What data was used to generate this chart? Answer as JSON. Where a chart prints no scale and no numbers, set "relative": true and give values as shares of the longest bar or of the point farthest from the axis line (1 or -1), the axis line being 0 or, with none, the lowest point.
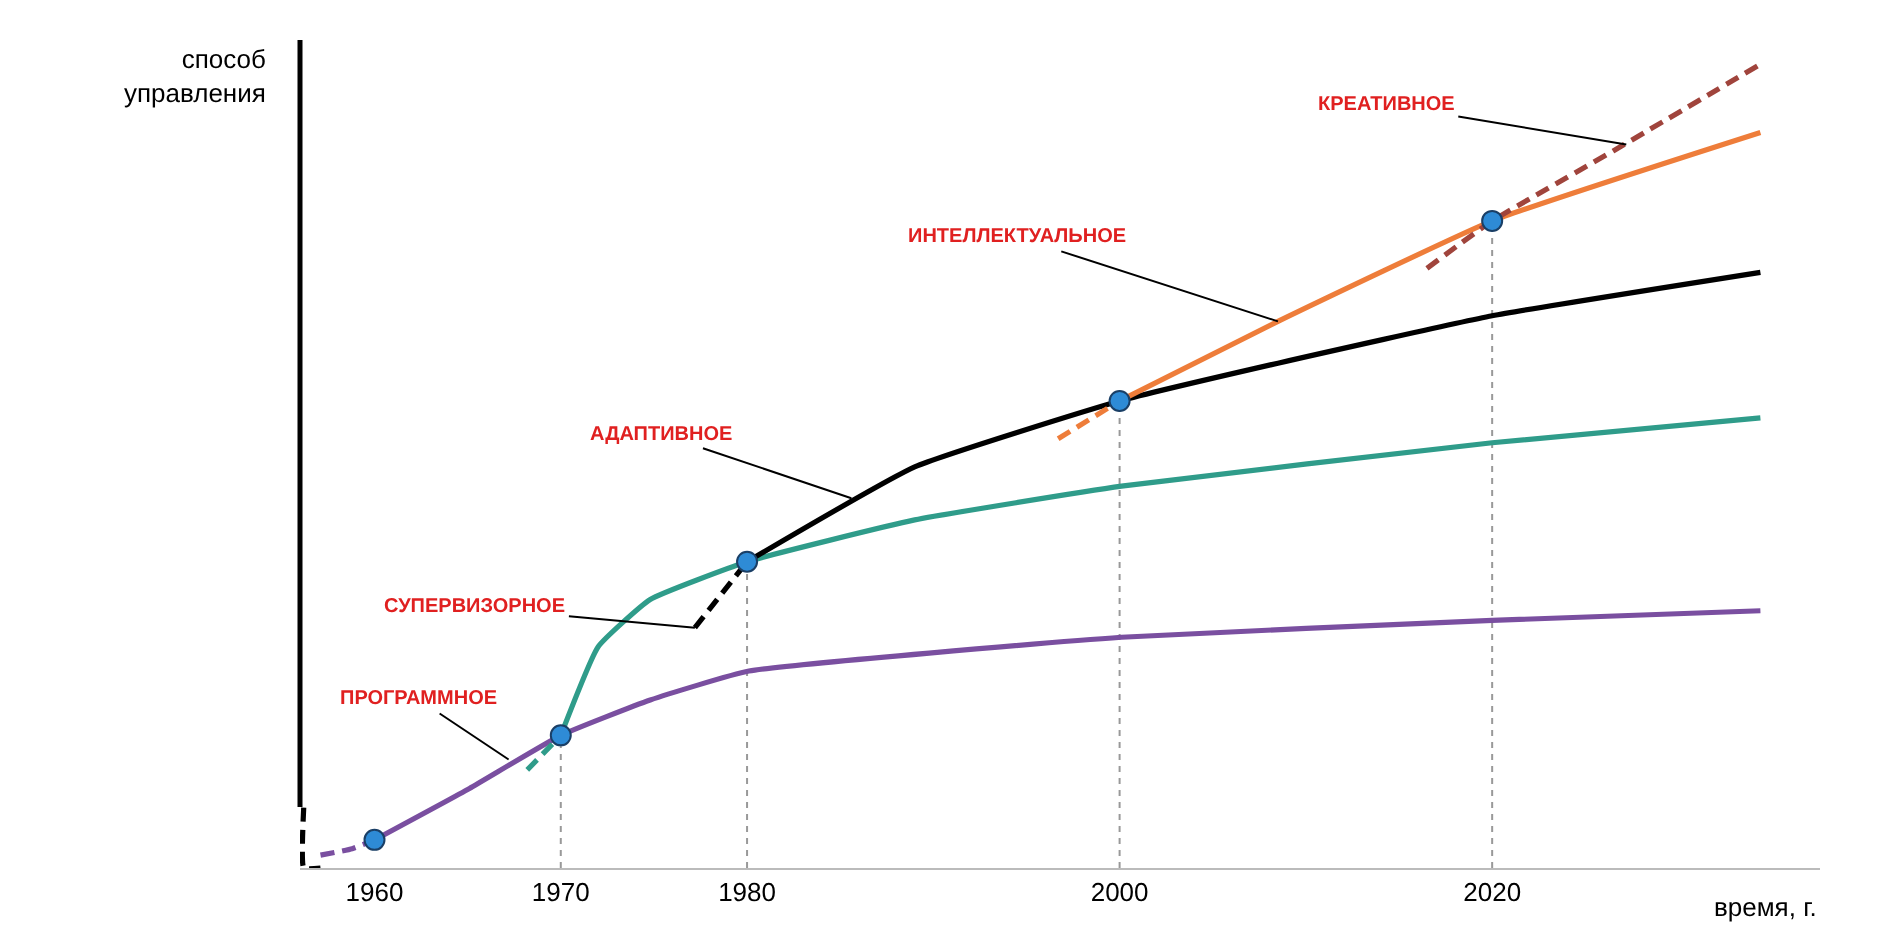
{
  "chart_data": {
    "type": "line",
    "relative": true,
    "xlabel": "время, г.",
    "ylabel": "способ\nуправления",
    "xlim": [
      1956,
      2037.6
    ],
    "ylim": [
      0,
      1.03
    ],
    "xticks": [
      1960,
      1970,
      1980,
      2000,
      2020
    ],
    "grid": false,
    "series": [
      {
        "color": "#000000",
        "line_style": "dashed",
        "x": [
          1956.2,
          1956.2,
          1957.1
        ],
        "values": [
          0.075,
          0,
          0
        ]
      },
      {
        "color": "#7a4fa0",
        "line_style": "dashed",
        "x": [
          1957.1,
          1958.8,
          1960
        ],
        "values": [
          0.016,
          0.024,
          0.035
        ]
      },
      {
        "color": "#7a4fa0",
        "line_style": "solid",
        "x": [
          1960,
          1965.1,
          1970,
          1974.8,
          1980.1,
          2000.1,
          2020,
          2034.4
        ],
        "values": [
          0.035,
          0.099,
          0.165,
          0.209,
          0.245,
          0.287,
          0.308,
          0.32
        ]
      },
      {
        "color": "#2f9c8a",
        "line_style": "dashed",
        "x": [
          1968.2,
          1970
        ],
        "values": [
          0.122,
          0.165
        ]
      },
      {
        "color": "#2f9c8a",
        "line_style": "solid",
        "x": [
          1970,
          1972,
          1974.8,
          1980,
          1989,
          2000.1,
          2020,
          2034.4
        ],
        "values": [
          0.165,
          0.275,
          0.334,
          0.381,
          0.433,
          0.475,
          0.529,
          0.56
        ]
      },
      {
        "color": "#000000",
        "line_style": "dashed",
        "x": [
          1977.2,
          1980
        ],
        "values": [
          0.299,
          0.381
        ]
      },
      {
        "color": "#000000",
        "line_style": "solid",
        "x": [
          1980,
          1989,
          2000,
          2008.5,
          2020,
          2034.4
        ],
        "values": [
          0.381,
          0.499,
          0.581,
          0.628,
          0.687,
          0.741
        ]
      },
      {
        "color": "#ee7d3a",
        "line_style": "dashed",
        "x": [
          1996.7,
          2000
        ],
        "values": [
          0.534,
          0.581
        ]
      },
      {
        "color": "#ee7d3a",
        "line_style": "solid",
        "x": [
          2000,
          2008.5,
          2020,
          2034.4
        ],
        "values": [
          0.581,
          0.68,
          0.805,
          0.915
        ]
      },
      {
        "color": "#a0443c",
        "line_style": "dashed",
        "x": [
          2016.5,
          2020,
          2026.5,
          2034.4
        ],
        "values": [
          0.746,
          0.805,
          0.892,
          1
        ]
      },
      {
        "type": "scatter",
        "marker": "circle",
        "color": "#2e8bd6",
        "x": [
          1960,
          1970,
          1980,
          2000,
          2020
        ],
        "values": [
          0.035,
          0.165,
          0.381,
          0.581,
          0.805
        ]
      }
    ],
    "ref_lines": [
      {
        "axis": "x",
        "value": 1970,
        "color": "#999999",
        "line_style": "dotted"
      },
      {
        "axis": "x",
        "value": 1980,
        "color": "#999999",
        "line_style": "dotted"
      },
      {
        "axis": "x",
        "value": 2000,
        "color": "#999999",
        "line_style": "dotted"
      },
      {
        "axis": "x",
        "value": 2020,
        "color": "#999999",
        "line_style": "dotted"
      }
    ],
    "annotations": [
      {
        "text": "ПРОГРАММНОЕ",
        "x": 1967.2,
        "y": 0.135
      },
      {
        "text": "СУПЕРВИЗОРНОЕ",
        "x": 1977.2,
        "y": 0.299
      },
      {
        "text": "АДАПТИВНОЕ",
        "x": 1985.6,
        "y": 0.46
      },
      {
        "text": "ИНТЕЛЛЕКТУАЛЬНОЕ",
        "x": 2008.5,
        "y": 0.68
      },
      {
        "text": "КРЕАТИВНОЕ",
        "x": 2027.2,
        "y": 0.9
      }
    ]
  }
}
